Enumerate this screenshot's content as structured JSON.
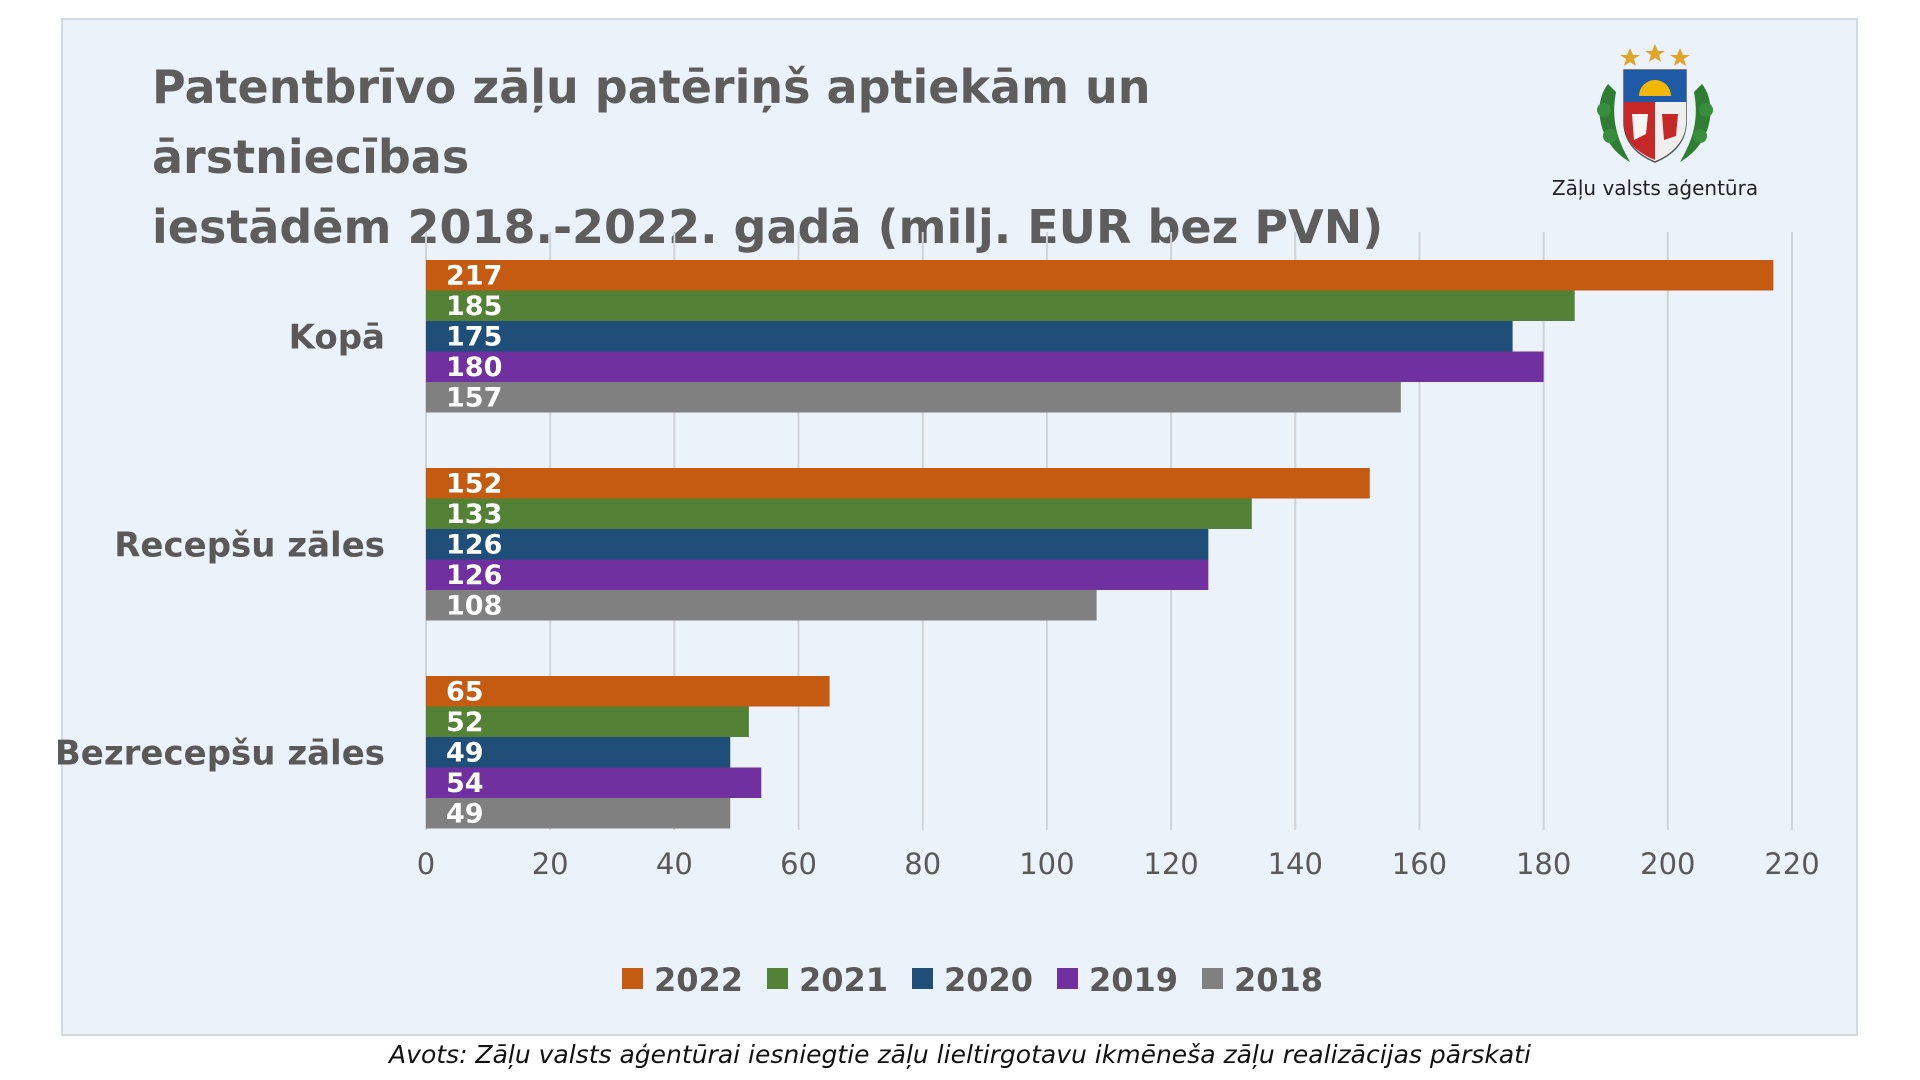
{
  "title_lines": [
    "Patentbrīvo zāļu patēriņš aptiekām un ārstniecības",
    "iestādēm 2018.-2022. gadā (milj. EUR bez PVN)"
  ],
  "logo": {
    "icon": "latvian-coat-of-arms",
    "caption": "Zāļu valsts aģentūra"
  },
  "source": "Avots: Zāļu valsts aģentūrai iesniegtie zāļu lieltirgotavu ikmēneša zāļu realizācijas pārskati",
  "chart_data": {
    "type": "bar",
    "orientation": "horizontal",
    "categories": [
      "Kopā",
      "Recepšu zāles",
      "Bezrecepšu zāles"
    ],
    "series": [
      {
        "name": "2022",
        "color": "#c55a11",
        "values": [
          217,
          152,
          65
        ]
      },
      {
        "name": "2021",
        "color": "#538135",
        "values": [
          185,
          133,
          52
        ]
      },
      {
        "name": "2020",
        "color": "#1f4e79",
        "values": [
          175,
          126,
          49
        ]
      },
      {
        "name": "2019",
        "color": "#7030a0",
        "values": [
          180,
          126,
          54
        ]
      },
      {
        "name": "2018",
        "color": "#808080",
        "values": [
          157,
          108,
          49
        ]
      }
    ],
    "xlim": [
      0,
      220
    ],
    "xticks": [
      0,
      20,
      40,
      60,
      80,
      100,
      120,
      140,
      160,
      180,
      200,
      220
    ],
    "grid": true,
    "legend_position": "bottom",
    "data_labels": "inside-base"
  }
}
